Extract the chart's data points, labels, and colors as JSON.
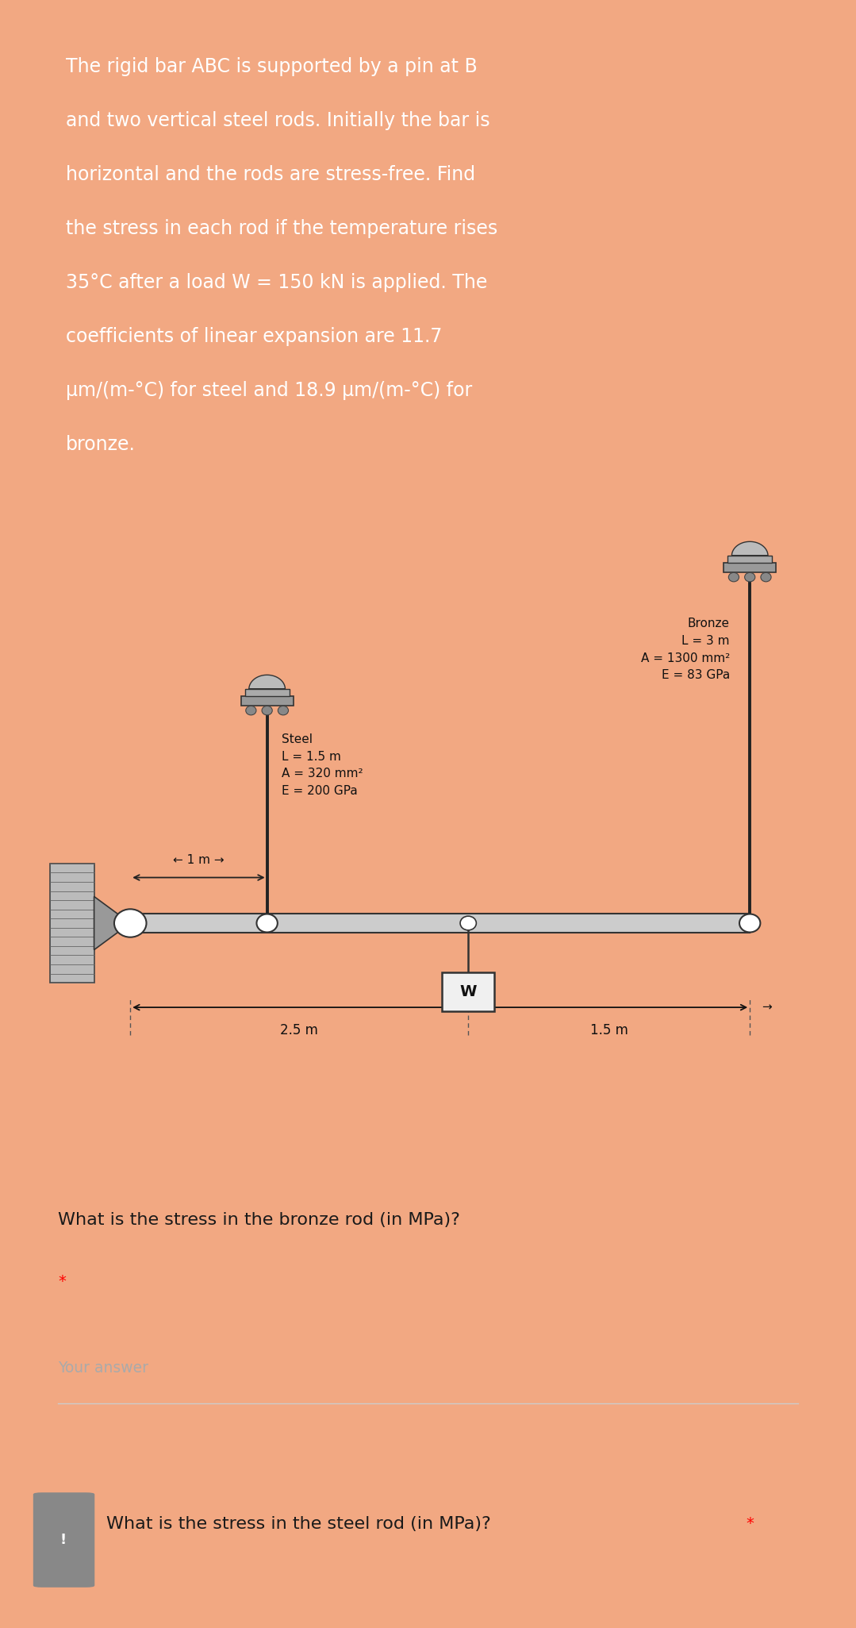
{
  "bg_color": "#f2a882",
  "orange_bg": "#e05500",
  "white_bg": "#ffffff",
  "text_color_white": "#ffffff",
  "text_color_dark": "#1a1a1a",
  "problem_text_lines": [
    "The rigid bar ABC is supported by a pin at B",
    "and two vertical steel rods. Initially the bar is",
    "horizontal and the rods are stress-free. Find",
    "the stress in each rod if the temperature rises",
    "35°C after a load W = 150 kN is applied. The",
    "coefficients of linear expansion are 11.7",
    "μm/(m-°C) for steel and 18.9 μm/(m-°C) for",
    "bronze."
  ],
  "q1_text": "What is the stress in the bronze rod (in MPa)?",
  "q1_star": "*",
  "q1_placeholder": "Your answer",
  "q2_icon": "!",
  "q2_text": "What is the stress in the steel rod (in MPa)?",
  "q2_star": "*",
  "fig_width": 10.79,
  "fig_height": 20.51,
  "dpi": 100
}
